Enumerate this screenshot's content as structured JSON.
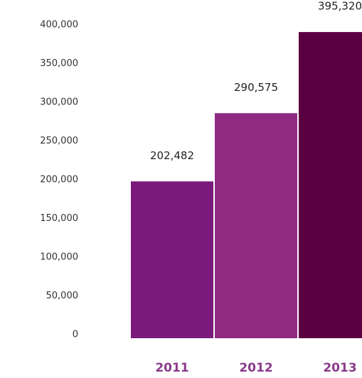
{
  "chart_data": {
    "type": "bar",
    "categories": [
      "2011",
      "2012",
      "2013"
    ],
    "values": [
      202482,
      290575,
      395320
    ],
    "value_labels": [
      "202,482",
      "290,575",
      "395,320"
    ],
    "colors": [
      "#7a1a7a",
      "#8f2a83",
      "#5a0040"
    ],
    "ylim": [
      0,
      400000
    ],
    "yticks": [
      0,
      {
        "value": 50000,
        "label": "50,000"
      },
      {
        "value": 100000,
        "label": "100,000"
      },
      {
        "value": 150000,
        "label": "150,000"
      },
      {
        "value": 200000,
        "label": "200,000"
      },
      {
        "value": 250000,
        "label": "250,000"
      },
      {
        "value": 300000,
        "label": "300,000"
      },
      {
        "value": 350000,
        "label": "350,000"
      },
      {
        "value": 400000,
        "label": "400,000"
      }
    ],
    "grid": false
  }
}
